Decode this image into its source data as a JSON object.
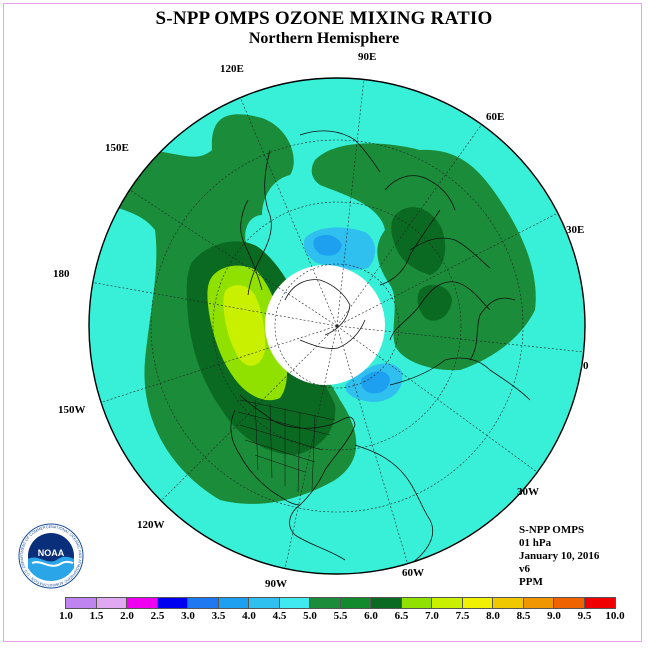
{
  "title": "S-NPP OMPS OZONE MIXING RATIO",
  "subtitle": "Northern Hemisphere",
  "longitude_labels": [
    "90E",
    "60E",
    "30E",
    "0",
    "30W",
    "60W",
    "90W",
    "120W",
    "150W",
    "180",
    "150E",
    "120E"
  ],
  "info": {
    "instrument": "S-NPP OMPS",
    "pressure": "01 hPa",
    "date": "January 10, 2016",
    "version": "v6",
    "units": "PPM"
  },
  "logo": {
    "text": "NOAA",
    "ring_text": "NATIONAL OCEANIC AND ATMOSPHERIC ADMINISTRATION · U.S. DEPARTMENT OF COMMERCE"
  },
  "colorbar": {
    "labels": [
      "1.0",
      "1.5",
      "2.0",
      "2.5",
      "3.0",
      "3.5",
      "4.0",
      "4.5",
      "5.0",
      "5.5",
      "6.0",
      "6.5",
      "7.0",
      "7.5",
      "8.0",
      "8.5",
      "9.0",
      "9.5",
      "10.0"
    ],
    "colors": [
      "#c084f0",
      "#dfa8f0",
      "#f000f0",
      "#0000f0",
      "#1e78f0",
      "#1ea0f0",
      "#30c0f0",
      "#40e8f0",
      "#1a8c3a",
      "#118a2e",
      "#0a6a22",
      "#90e000",
      "#c8f000",
      "#f0f000",
      "#f0c800",
      "#f09600",
      "#f06400",
      "#f00000",
      "#8b5a3c"
    ]
  },
  "colors": {
    "background_ozone": "#38f0d8",
    "ring_5_5": "#1a8c3a",
    "core_6_0": "#0a6a22",
    "max_6_5": "#90e000",
    "max_7_0": "#c8f000",
    "low_4_5": "#30c0f0",
    "low_4_0": "#1ea0f0",
    "pole_no_data": "#ffffff"
  }
}
